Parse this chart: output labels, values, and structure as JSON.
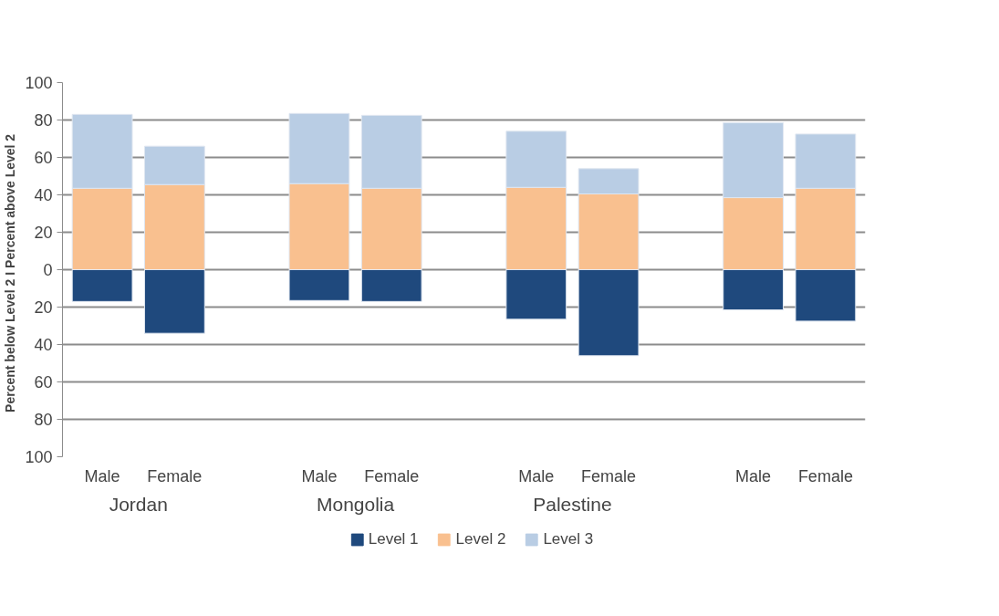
{
  "chart_data": {
    "type": "bar",
    "stacked": true,
    "ylabel": "Percent below Level 2  I  Percent above Level 2",
    "categories": [
      "Male",
      "Female",
      "Male",
      "Female",
      "Male",
      "Female",
      "Male",
      "Female"
    ],
    "annotations": [
      "Jordan",
      "Mongolia",
      "Palestine"
    ],
    "series": [
      {
        "name": "Level 1",
        "color": "#1f497d",
        "values": [
          -17,
          -34,
          -16.5,
          -17,
          -26.5,
          -46,
          -21.5,
          -27.5
        ]
      },
      {
        "name": "Level 2",
        "color": "#f9c08f",
        "values": [
          43.5,
          45.5,
          46,
          43.5,
          44,
          40.5,
          38.5,
          43.5
        ]
      },
      {
        "name": "Level 3",
        "color": "#b9cde4",
        "values": [
          39.5,
          20.5,
          37.5,
          39,
          30,
          13.5,
          40,
          29
        ]
      }
    ],
    "ylim": [
      -100,
      100
    ],
    "yticks": [
      {
        "value": -100,
        "label": "100"
      },
      {
        "value": -80,
        "label": "80"
      },
      {
        "value": -60,
        "label": "60"
      },
      {
        "value": -40,
        "label": "40"
      },
      {
        "value": -20,
        "label": "20"
      },
      0,
      20,
      40,
      60,
      80,
      100
    ],
    "grid": "y",
    "legend": "bottom"
  }
}
